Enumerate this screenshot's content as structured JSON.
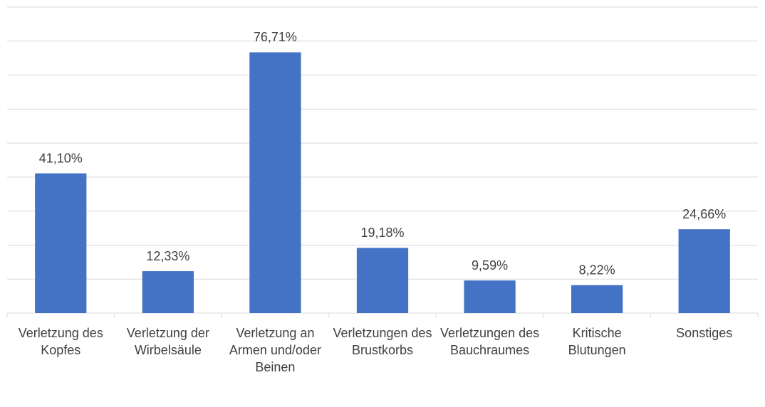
{
  "chart_data": {
    "type": "bar",
    "categories": [
      "Verletzung des Kopfes",
      "Verletzung der Wirbelsäule",
      "Verletzung an Armen und/oder Beinen",
      "Verletzungen des Brustkorbs",
      "Verletzungen des Bauchraumes",
      "Kritische Blutungen",
      "Sonstiges"
    ],
    "values": [
      41.1,
      12.33,
      76.71,
      19.18,
      9.59,
      8.22,
      24.66
    ],
    "value_labels": [
      "41,10%",
      "12,33%",
      "76,71%",
      "19,18%",
      "9,59%",
      "8,22%",
      "24,66%"
    ],
    "color": "#4472c4",
    "ylim": [
      0,
      90
    ],
    "yticks": [
      0,
      10,
      20,
      30,
      40,
      50,
      60,
      70,
      80,
      90
    ],
    "grid": true
  }
}
